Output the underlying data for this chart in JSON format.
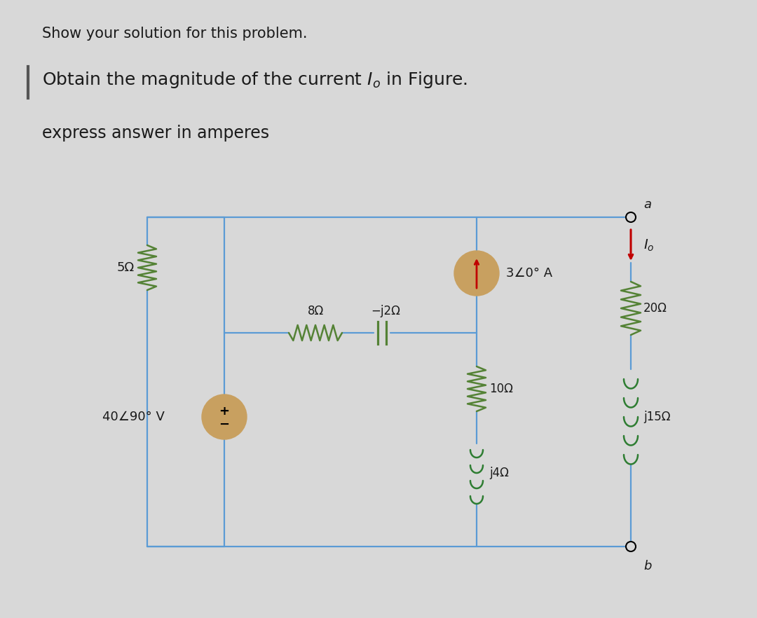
{
  "title1": "Show your solution for this problem.",
  "title2": "Obtain the magnitude of the current I",
  "title2_sub": "o",
  "title2_end": " in Figure.",
  "title3": "express answer in amperes",
  "bg_color": "#d8d8d8",
  "wire_color": "#5b9bd5",
  "resistor_color": "#548235",
  "inductor_color": "#375623",
  "capacitor_color": "#548235",
  "source_fill": "#c8a060",
  "current_source_fill": "#c8a060",
  "arrow_color": "#c00000",
  "text_color": "#1a1a1a",
  "border_line_color": "#555555"
}
